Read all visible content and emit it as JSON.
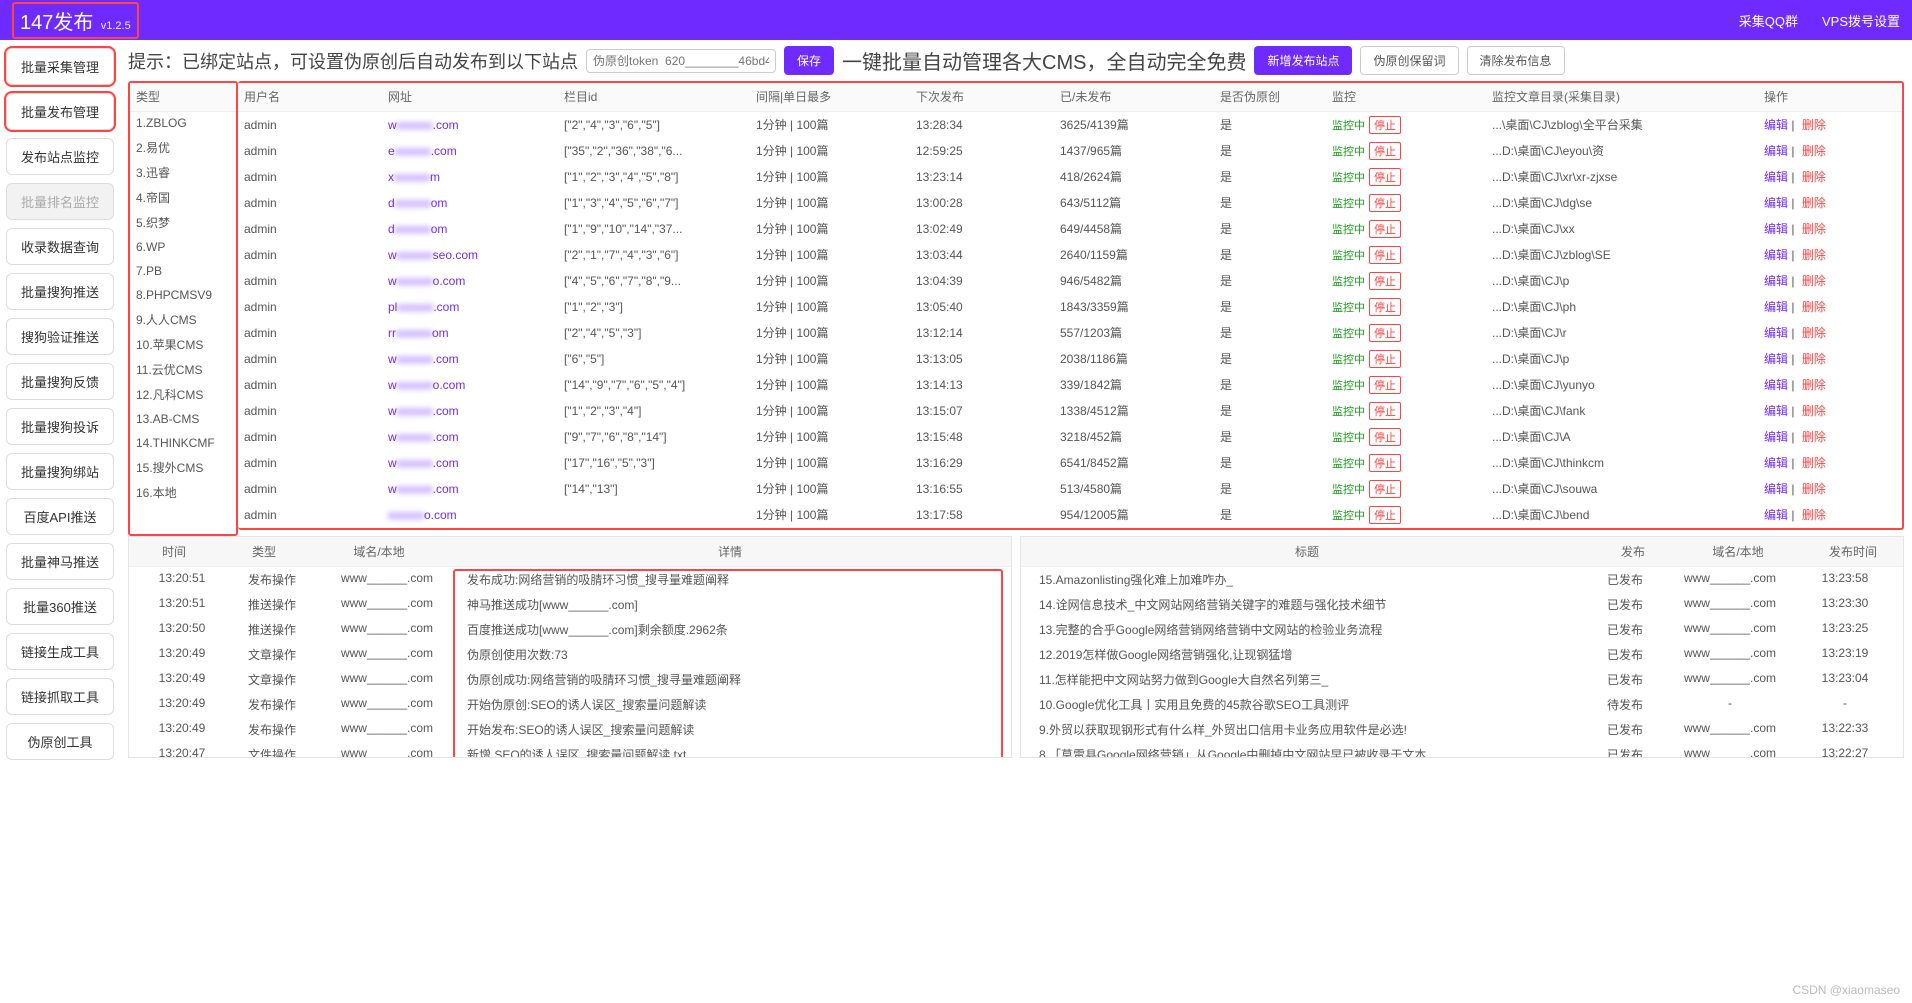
{
  "header": {
    "title": "147发布",
    "version": "v1.2.5",
    "link_qq": "采集QQ群",
    "link_vps": "VPS拨号设置"
  },
  "sidebar": {
    "items": [
      {
        "label": "批量采集管理",
        "hl": true
      },
      {
        "label": "批量发布管理",
        "hl": true
      },
      {
        "label": "发布站点监控"
      },
      {
        "label": "批量排名监控",
        "disabled": true
      },
      {
        "label": "收录数据查询"
      },
      {
        "label": "批量搜狗推送"
      },
      {
        "label": "搜狗验证推送"
      },
      {
        "label": "批量搜狗反馈"
      },
      {
        "label": "批量搜狗投诉"
      },
      {
        "label": "批量搜狗绑站"
      },
      {
        "label": "百度API推送"
      },
      {
        "label": "批量神马推送"
      },
      {
        "label": "批量360推送"
      },
      {
        "label": "链接生成工具"
      },
      {
        "label": "链接抓取工具"
      },
      {
        "label": "伪原创工具"
      }
    ]
  },
  "topbar": {
    "hint": "提示：已绑定站点，可设置伪原创后自动发布到以下站点",
    "token_placeholder": "伪原创token  620________46bd4",
    "save": "保存",
    "slogan": "一键批量自动管理各大CMS，全自动完全免费",
    "btn_add": "新增发布站点",
    "btn_keep": "伪原创保留词",
    "btn_clear": "清除发布信息"
  },
  "table": {
    "headers": {
      "type": "类型",
      "user": "用户名",
      "url": "网址",
      "cols": "栏目id",
      "interval": "间隔|单日最多",
      "next": "下次发布",
      "pub": "已/未发布",
      "orig": "是否伪原创",
      "mon": "监控",
      "dir": "监控文章目录(采集目录)",
      "op": "操作"
    },
    "mon_on": "监控中",
    "mon_stop": "停止",
    "orig_yes": "是",
    "op_edit": "编辑",
    "op_del": "删除",
    "rows": [
      {
        "type": "1.ZBLOG",
        "user": "admin",
        "url_a": "w",
        "url_b": ".com",
        "cols": "[\"2\",\"4\",\"3\",\"6\",\"5\"]",
        "interval": "1分钟 | 100篇",
        "next": "13:28:34",
        "pub": "3625/4139篇",
        "dir": "...\\桌面\\CJ\\zblog\\全平台采集"
      },
      {
        "type": "2.易优",
        "user": "admin",
        "url_a": "e",
        "url_b": ".com",
        "cols": "[\"35\",\"2\",\"36\",\"38\",\"6...",
        "interval": "1分钟 | 100篇",
        "next": "12:59:25",
        "pub": "1437/965篇",
        "dir": "...D:\\桌面\\CJ\\eyou\\资"
      },
      {
        "type": "3.迅睿",
        "user": "admin",
        "url_a": "x",
        "url_b": "m",
        "cols": "[\"1\",\"2\",\"3\",\"4\",\"5\",\"8\"]",
        "interval": "1分钟 | 100篇",
        "next": "13:23:14",
        "pub": "418/2624篇",
        "dir": "...D:\\桌面\\CJ\\xr\\xr-zjxse"
      },
      {
        "type": "4.帝国",
        "user": "admin",
        "url_a": "d",
        "url_b": "om",
        "cols": "[\"1\",\"3\",\"4\",\"5\",\"6\",\"7\"]",
        "interval": "1分钟 | 100篇",
        "next": "13:00:28",
        "pub": "643/5112篇",
        "dir": "...D:\\桌面\\CJ\\dg\\se"
      },
      {
        "type": "5.织梦",
        "user": "admin",
        "url_a": "d",
        "url_b": "om",
        "cols": "[\"1\",\"9\",\"10\",\"14\",\"37...",
        "interval": "1分钟 | 100篇",
        "next": "13:02:49",
        "pub": "649/4458篇",
        "dir": "...D:\\桌面\\CJ\\xx"
      },
      {
        "type": "6.WP",
        "user": "admin",
        "url_a": "w",
        "url_b": "seo.com",
        "cols": "[\"2\",\"1\",\"7\",\"4\",\"3\",\"6\"]",
        "interval": "1分钟 | 100篇",
        "next": "13:03:44",
        "pub": "2640/1159篇",
        "dir": "...D:\\桌面\\CJ\\zblog\\SE"
      },
      {
        "type": "7.PB",
        "user": "admin",
        "url_a": "w",
        "url_b": "o.com",
        "cols": "[\"4\",\"5\",\"6\",\"7\",\"8\",\"9...",
        "interval": "1分钟 | 100篇",
        "next": "13:04:39",
        "pub": "946/5482篇",
        "dir": "...D:\\桌面\\CJ\\p"
      },
      {
        "type": "8.PHPCMSV9",
        "user": "admin",
        "url_a": "pl",
        "url_b": ".com",
        "cols": "[\"1\",\"2\",\"3\"]",
        "interval": "1分钟 | 100篇",
        "next": "13:05:40",
        "pub": "1843/3359篇",
        "dir": "...D:\\桌面\\CJ\\ph"
      },
      {
        "type": "9.人人CMS",
        "user": "admin",
        "url_a": "rr",
        "url_b": "om",
        "cols": "[\"2\",\"4\",\"5\",\"3\"]",
        "interval": "1分钟 | 100篇",
        "next": "13:12:14",
        "pub": "557/1203篇",
        "dir": "...D:\\桌面\\CJ\\r"
      },
      {
        "type": "10.苹果CMS",
        "user": "admin",
        "url_a": "w",
        "url_b": ".com",
        "cols": "[\"6\",\"5\"]",
        "interval": "1分钟 | 100篇",
        "next": "13:13:05",
        "pub": "2038/1186篇",
        "dir": "...D:\\桌面\\CJ\\p"
      },
      {
        "type": "11.云优CMS",
        "user": "admin",
        "url_a": "w",
        "url_b": "o.com",
        "cols": "[\"14\",\"9\",\"7\",\"6\",\"5\",\"4\"]",
        "interval": "1分钟 | 100篇",
        "next": "13:14:13",
        "pub": "339/1842篇",
        "dir": "...D:\\桌面\\CJ\\yunyo"
      },
      {
        "type": "12.凡科CMS",
        "user": "admin",
        "url_a": "w",
        "url_b": ".com",
        "cols": "[\"1\",\"2\",\"3\",\"4\"]",
        "interval": "1分钟 | 100篇",
        "next": "13:15:07",
        "pub": "1338/4512篇",
        "dir": "...D:\\桌面\\CJ\\fank"
      },
      {
        "type": "13.AB-CMS",
        "user": "admin",
        "url_a": "w",
        "url_b": ".com",
        "cols": "[\"9\",\"7\",\"6\",\"8\",\"14\"]",
        "interval": "1分钟 | 100篇",
        "next": "13:15:48",
        "pub": "3218/452篇",
        "dir": "...D:\\桌面\\CJ\\A"
      },
      {
        "type": "14.THINKCMF",
        "user": "admin",
        "url_a": "w",
        "url_b": ".com",
        "cols": "[\"17\",\"16\",\"5\",\"3\"]",
        "interval": "1分钟 | 100篇",
        "next": "13:16:29",
        "pub": "6541/8452篇",
        "dir": "...D:\\桌面\\CJ\\thinkcm"
      },
      {
        "type": "15.搜外CMS",
        "user": "admin",
        "url_a": "w",
        "url_b": ".com",
        "cols": "[\"14\",\"13\"]",
        "interval": "1分钟 | 100篇",
        "next": "13:16:55",
        "pub": "513/4580篇",
        "dir": "...D:\\桌面\\CJ\\souwa"
      },
      {
        "type": "16.本地",
        "user": "admin",
        "url_a": "",
        "url_b": "o.com",
        "cols": "",
        "interval": "1分钟 | 100篇",
        "next": "13:17:58",
        "pub": "954/12005篇",
        "dir": "...D:\\桌面\\CJ\\bend"
      }
    ]
  },
  "log_left": {
    "headers": {
      "time": "时间",
      "type": "类型",
      "dom": "域名/本地",
      "det": "详情"
    },
    "rows": [
      {
        "time": "13:20:51",
        "type": "发布操作",
        "dom": "www______.com",
        "det": "发布成功:网络营销的吸腈环习惯_搜寻量难题阐释"
      },
      {
        "time": "13:20:51",
        "type": "推送操作",
        "dom": "www______.com",
        "det": "神马推送成功[www______.com]"
      },
      {
        "time": "13:20:50",
        "type": "推送操作",
        "dom": "www______.com",
        "det": "百度推送成功[www______.com]剩余额度.2962条"
      },
      {
        "time": "13:20:49",
        "type": "文章操作",
        "dom": "www______.com",
        "det": "伪原创使用次数:73"
      },
      {
        "time": "13:20:49",
        "type": "文章操作",
        "dom": "www______.com",
        "det": "伪原创成功:网络营销的吸腈环习惯_搜寻量难题阐释"
      },
      {
        "time": "13:20:49",
        "type": "发布操作",
        "dom": "www______.com",
        "det": "开始伪原创:SEO的诱人误区_搜索量问题解读"
      },
      {
        "time": "13:20:49",
        "type": "发布操作",
        "dom": "www______.com",
        "det": "开始发布:SEO的诱人误区_搜索量问题解读"
      },
      {
        "time": "13:20:47",
        "type": "文件操作",
        "dom": "www______.com",
        "det": "新增 SEO的诱人误区_搜索量问题解读.txt"
      }
    ]
  },
  "log_right": {
    "headers": {
      "title": "标题",
      "pub": "发布",
      "dom": "域名/本地",
      "time": "发布时间"
    },
    "rows": [
      {
        "title": "15.Amazonlisting强化难上加难咋办_",
        "pub": "已发布",
        "dom": "www______.com",
        "time": "13:23:58"
      },
      {
        "title": "14.诠网信息技术_中文网站网络营销关键字的难题与强化技术细节",
        "pub": "已发布",
        "dom": "www______.com",
        "time": "13:23:30"
      },
      {
        "title": "13.完整的合乎Google网络营销网络营销中文网站的检验业务流程",
        "pub": "已发布",
        "dom": "www______.com",
        "time": "13:23:25"
      },
      {
        "title": "12.2019怎样做Google网络营销强化,让现钢猛增",
        "pub": "已发布",
        "dom": "www______.com",
        "time": "13:23:19"
      },
      {
        "title": "11.怎样能把中文网站努力做到Google大自然名列第三_",
        "pub": "已发布",
        "dom": "www______.com",
        "time": "13:23:04"
      },
      {
        "title": "10.Google优化工具丨实用且免费的45款谷歌SEO工具测评",
        "pub": "待发布",
        "dom": "-",
        "time": "-"
      },
      {
        "title": "9.外贸以获取现钢形式有什么样_外贸出口信用卡业务应用软件是必选!",
        "pub": "已发布",
        "dom": "www______.com",
        "time": "13:22:33"
      },
      {
        "title": "8.「莫雷县Google网络营销」从Google中删掉中文网站早已被收录于文本",
        "pub": "已发布",
        "dom": "www______.com",
        "time": "13:22:27"
      }
    ]
  },
  "watermark": "CSDN @xiaomaseo"
}
